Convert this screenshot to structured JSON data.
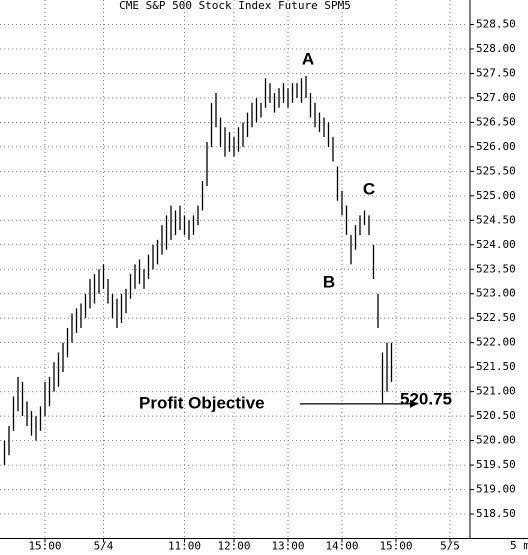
{
  "chart_data": {
    "type": "ohlc",
    "title": "CME S&P 500 Stock Index  Future  SPM5",
    "x": [
      0,
      1,
      2,
      3,
      4,
      5,
      6,
      7,
      8,
      9,
      10,
      11,
      12,
      13,
      14,
      15,
      16,
      17,
      18,
      19,
      20,
      21,
      22,
      23,
      24,
      25,
      26,
      27,
      28,
      29,
      30,
      31,
      32,
      33,
      34,
      35,
      36,
      37,
      38,
      39,
      40,
      41,
      42,
      43,
      44,
      45,
      46,
      47,
      48,
      49,
      50,
      51,
      52,
      53,
      54,
      55,
      56,
      57,
      58,
      59,
      60,
      61,
      62,
      63,
      64,
      65,
      66,
      67,
      68,
      69,
      70,
      71,
      72,
      73,
      74,
      75,
      76,
      77,
      78,
      79,
      80,
      81,
      82,
      83,
      84,
      85,
      86
    ],
    "high": [
      520.0,
      520.3,
      520.9,
      521.3,
      521.2,
      520.8,
      520.6,
      520.5,
      520.7,
      521.2,
      521.3,
      521.6,
      521.8,
      522.0,
      522.3,
      522.6,
      522.7,
      522.8,
      523.0,
      523.3,
      523.4,
      523.5,
      523.6,
      523.3,
      523.0,
      522.9,
      523.0,
      523.1,
      523.4,
      523.6,
      523.7,
      523.5,
      523.8,
      524.0,
      524.1,
      524.4,
      524.6,
      524.8,
      524.7,
      524.8,
      524.6,
      524.5,
      524.6,
      524.8,
      525.3,
      526.1,
      526.9,
      527.1,
      526.6,
      526.4,
      526.3,
      526.2,
      526.4,
      526.5,
      526.7,
      526.9,
      527.0,
      526.9,
      527.4,
      527.3,
      527.1,
      527.2,
      527.3,
      527.2,
      527.3,
      527.3,
      527.4,
      527.45,
      527.1,
      526.9,
      526.7,
      526.6,
      526.5,
      526.2,
      525.6,
      525.1,
      524.8,
      524.2,
      524.4,
      524.6,
      524.7,
      524.6,
      524.0,
      523.0,
      521.8,
      522.0,
      522.0
    ],
    "low": [
      519.5,
      519.7,
      520.2,
      520.6,
      520.5,
      520.3,
      520.1,
      520.0,
      520.2,
      520.5,
      520.7,
      521.0,
      521.1,
      521.4,
      521.7,
      522.0,
      522.2,
      522.3,
      522.5,
      522.7,
      522.8,
      523.0,
      523.1,
      522.8,
      522.5,
      522.3,
      522.4,
      522.6,
      522.9,
      523.1,
      523.2,
      523.1,
      523.3,
      523.5,
      523.6,
      523.8,
      523.9,
      524.1,
      524.2,
      524.3,
      524.2,
      524.1,
      524.2,
      524.4,
      524.7,
      525.2,
      526.0,
      526.4,
      526.0,
      525.8,
      525.9,
      525.8,
      525.9,
      526.0,
      526.2,
      526.4,
      526.5,
      526.6,
      526.8,
      526.9,
      526.7,
      526.8,
      526.9,
      526.8,
      526.9,
      527.0,
      526.9,
      527.0,
      526.6,
      526.4,
      526.3,
      526.2,
      526.0,
      525.7,
      524.9,
      524.6,
      524.2,
      523.6,
      523.9,
      524.2,
      524.4,
      524.2,
      523.3,
      522.3,
      520.75,
      521.0,
      521.2
    ],
    "color": "#000000",
    "xlim": [
      -1,
      103
    ],
    "xticks": [
      {
        "value": 9,
        "label": "15:00"
      },
      {
        "value": 22,
        "label": "5/4"
      },
      {
        "value": 40,
        "label": "11:00"
      },
      {
        "value": 51,
        "label": "12:00"
      },
      {
        "value": 63,
        "label": "13:00"
      },
      {
        "value": 75,
        "label": "14:00"
      },
      {
        "value": 87,
        "label": "15:00"
      },
      {
        "value": 99,
        "label": "5/5"
      }
    ],
    "x_unit": "5 m",
    "ylim": [
      518.0,
      529.0
    ],
    "yticks": [
      {
        "value": 518.5,
        "label": "518.50"
      },
      {
        "value": 519,
        "label": "519.00"
      },
      {
        "value": 519.5,
        "label": "519.50"
      },
      {
        "value": 520,
        "label": "520.00"
      },
      {
        "value": 520.5,
        "label": "520.50"
      },
      {
        "value": 521,
        "label": "521.00"
      },
      {
        "value": 521.5,
        "label": "521.50"
      },
      {
        "value": 522,
        "label": "522.00"
      },
      {
        "value": 522.5,
        "label": "522.50"
      },
      {
        "value": 523,
        "label": "523.00"
      },
      {
        "value": 523.5,
        "label": "523.50"
      },
      {
        "value": 524,
        "label": "524.00"
      },
      {
        "value": 524.5,
        "label": "524.50"
      },
      {
        "value": 525,
        "label": "525.00"
      },
      {
        "value": 525.5,
        "label": "525.50"
      },
      {
        "value": 526,
        "label": "526.00"
      },
      {
        "value": 526.5,
        "label": "526.50"
      },
      {
        "value": 527,
        "label": "527.00"
      },
      {
        "value": 527.5,
        "label": "527.50"
      },
      {
        "value": 528,
        "label": "528.00"
      },
      {
        "value": 528.5,
        "label": "528.50"
      }
    ],
    "grid": true,
    "annotations": [
      {
        "text": "A"
      },
      {
        "text": "B"
      },
      {
        "text": "C"
      }
    ],
    "profit_objective": {
      "label": "Profit Objective",
      "value": 520.75,
      "value_label": "520.75"
    }
  }
}
